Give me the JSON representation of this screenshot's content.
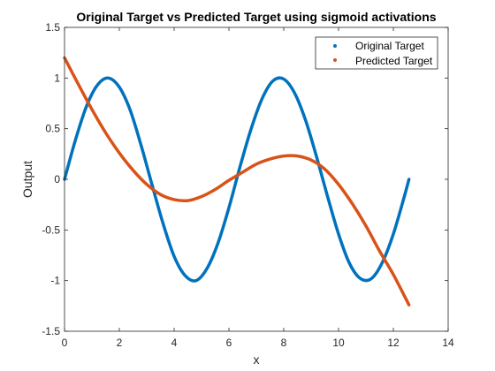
{
  "chart_data": {
    "type": "line",
    "title": "Original Target vs Predicted Target using sigmoid activations",
    "xlabel": "x",
    "ylabel": "Output",
    "xlim": [
      0,
      14
    ],
    "ylim": [
      -1.5,
      1.5
    ],
    "xticks": [
      0,
      2,
      4,
      6,
      8,
      10,
      12,
      14
    ],
    "xtick_labels": [
      "0",
      "2",
      "4",
      "6",
      "8",
      "10",
      "12",
      "14"
    ],
    "yticks": [
      -1.5,
      -1,
      -0.5,
      0,
      0.5,
      1,
      1.5
    ],
    "ytick_labels": [
      "-1.5",
      "-1",
      "-0.5",
      "0",
      "0.5",
      "1",
      "1.5"
    ],
    "grid": false,
    "legend_position": "top-right",
    "series": [
      {
        "name": "Original Target",
        "color": "#0072BD",
        "x": [
          0,
          0.4,
          0.8,
          1.2,
          1.6,
          2.0,
          2.4,
          2.8,
          3.2,
          3.6,
          4.0,
          4.4,
          4.8,
          5.2,
          5.6,
          6.0,
          6.4,
          6.8,
          7.2,
          7.6,
          8.0,
          8.4,
          8.8,
          9.2,
          9.6,
          10.0,
          10.4,
          10.8,
          11.2,
          11.6,
          12.0,
          12.4,
          12.57
        ],
        "y": [
          0,
          0.39,
          0.72,
          0.93,
          1.0,
          0.91,
          0.68,
          0.33,
          -0.06,
          -0.44,
          -0.76,
          -0.95,
          -1.0,
          -0.88,
          -0.63,
          -0.28,
          0.12,
          0.49,
          0.79,
          0.97,
          0.99,
          0.85,
          0.58,
          0.22,
          -0.17,
          -0.54,
          -0.83,
          -0.98,
          -0.98,
          -0.82,
          -0.54,
          -0.17,
          0
        ]
      },
      {
        "name": "Predicted Target",
        "color": "#D95319",
        "x": [
          0,
          0.5,
          1.0,
          1.5,
          2.0,
          2.5,
          3.0,
          3.5,
          4.0,
          4.5,
          5.0,
          5.5,
          6.0,
          6.5,
          7.0,
          7.5,
          8.0,
          8.5,
          9.0,
          9.5,
          10.0,
          10.5,
          11.0,
          11.5,
          12.0,
          12.57
        ],
        "y": [
          1.2,
          0.94,
          0.69,
          0.46,
          0.26,
          0.09,
          -0.05,
          -0.15,
          -0.2,
          -0.21,
          -0.17,
          -0.1,
          -0.01,
          0.07,
          0.15,
          0.2,
          0.23,
          0.23,
          0.19,
          0.1,
          -0.05,
          -0.24,
          -0.46,
          -0.71,
          -0.94,
          -1.24
        ]
      }
    ]
  }
}
